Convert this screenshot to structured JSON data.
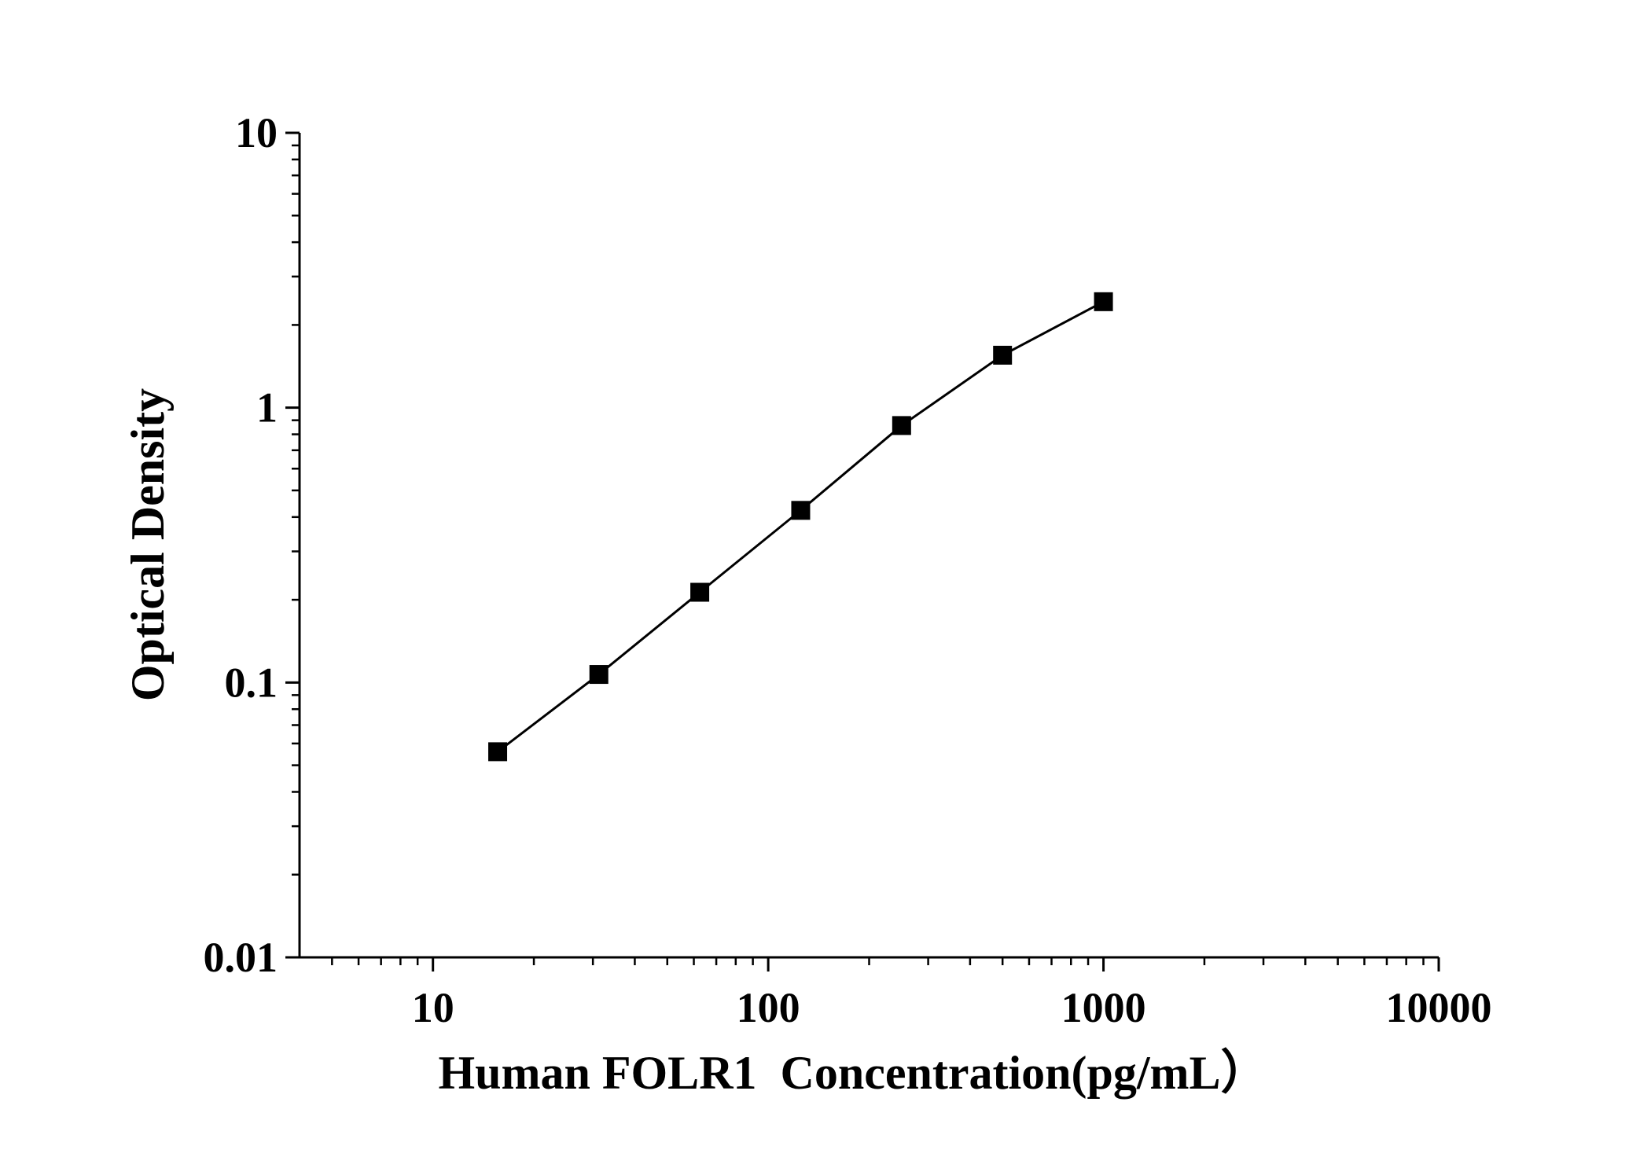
{
  "chart_data": {
    "type": "line",
    "x_label": "Human FOLR1  Concentration(pg/mL）",
    "y_label": "Optical Density",
    "x_log": true,
    "y_log": true,
    "minor_ticks": true,
    "xlim": [
      4,
      10000
    ],
    "ylim": [
      0.01,
      10
    ],
    "xticks": [
      10,
      100,
      1000,
      10000
    ],
    "yticks": [
      0.01,
      0.1,
      1,
      10
    ],
    "x": [
      15.6,
      31.25,
      62.5,
      125,
      250,
      500,
      1000
    ],
    "series": [
      {
        "color": "#000000",
        "values": [
          0.056,
          0.107,
          0.213,
          0.423,
          0.861,
          1.552,
          2.43
        ]
      }
    ]
  }
}
